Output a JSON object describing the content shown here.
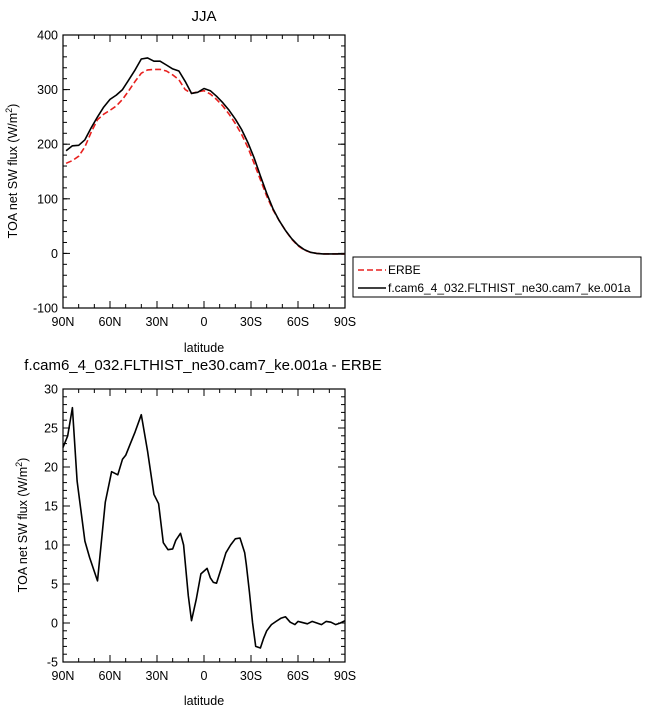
{
  "chart_data": [
    {
      "type": "line",
      "title": "JJA",
      "xlabel": "latitude",
      "ylabel": "TOA net SW flux (W/m2)",
      "ylabel_main": "TOA net SW flux (W/m",
      "ylabel_sup": "2",
      "ylabel_close": ")",
      "xlim": [
        -90,
        90
      ],
      "ylim": [
        -100,
        400
      ],
      "x_reversed": true,
      "xticks": [
        {
          "v": -90,
          "label": "90N"
        },
        {
          "v": -60,
          "label": "60N"
        },
        {
          "v": -30,
          "label": "30N"
        },
        {
          "v": 0,
          "label": "0"
        },
        {
          "v": 30,
          "label": "30S"
        },
        {
          "v": 60,
          "label": "60S"
        },
        {
          "v": 90,
          "label": "90S"
        }
      ],
      "yticks": [
        {
          "v": -100,
          "label": "-100"
        },
        {
          "v": 0,
          "label": "0"
        },
        {
          "v": 100,
          "label": "100"
        },
        {
          "v": 200,
          "label": "200"
        },
        {
          "v": 300,
          "label": "300"
        },
        {
          "v": 400,
          "label": "400"
        }
      ],
      "legend": "right",
      "series": [
        {
          "name": "ERBE",
          "color": "#e8201e",
          "dash": true,
          "x": [
            -88,
            -84,
            -80,
            -76,
            -72,
            -68,
            -64,
            -60,
            -56,
            -52,
            -48,
            -44,
            -40,
            -36,
            -32,
            -28,
            -24,
            -20,
            -16,
            -12,
            -8,
            -4,
            0,
            4,
            8,
            12,
            16,
            20,
            24,
            28,
            32,
            36,
            40,
            44,
            48,
            52,
            56,
            60,
            64,
            68,
            72,
            76,
            80,
            84,
            88,
            90
          ],
          "y": [
            165,
            170,
            178,
            195,
            222,
            245,
            255,
            262,
            270,
            282,
            298,
            315,
            330,
            336,
            337,
            337,
            334,
            327,
            318,
            300,
            293,
            296,
            298,
            292,
            282,
            270,
            255,
            238,
            218,
            194,
            165,
            135,
            105,
            80,
            60,
            42,
            26,
            14,
            6,
            2,
            0,
            -1,
            -1,
            -1,
            -1,
            -1
          ]
        },
        {
          "name": "f.cam6_4_032.FLTHIST_ne30.cam7_ke.001a",
          "color": "#000000",
          "dash": false,
          "x": [
            -88,
            -84,
            -80,
            -76,
            -72,
            -68,
            -64,
            -60,
            -56,
            -52,
            -48,
            -44,
            -40,
            -36,
            -32,
            -28,
            -24,
            -20,
            -16,
            -12,
            -8,
            -4,
            0,
            4,
            8,
            12,
            16,
            20,
            24,
            28,
            32,
            36,
            40,
            44,
            48,
            52,
            56,
            60,
            64,
            68,
            72,
            76,
            80,
            84,
            88,
            90
          ],
          "y": [
            188,
            197,
            198,
            208,
            230,
            250,
            268,
            282,
            290,
            300,
            318,
            336,
            356,
            358,
            352,
            352,
            345,
            338,
            334,
            315,
            293,
            295,
            302,
            298,
            288,
            276,
            262,
            246,
            227,
            203,
            175,
            142,
            110,
            82,
            60,
            42,
            27,
            15,
            7,
            2,
            0,
            -1,
            -1,
            -1,
            -1,
            -1
          ]
        }
      ]
    },
    {
      "type": "line",
      "title": "f.cam6_4_032.FLTHIST_ne30.cam7_ke.001a - ERBE",
      "xlabel": "latitude",
      "ylabel": "TOA net SW flux (W/m2)",
      "ylabel_main": "TOA net SW flux (W/m",
      "ylabel_sup": "2",
      "ylabel_close": ")",
      "xlim": [
        -90,
        90
      ],
      "ylim": [
        -5,
        30
      ],
      "x_reversed": true,
      "xticks": [
        {
          "v": -90,
          "label": "90N"
        },
        {
          "v": -60,
          "label": "60N"
        },
        {
          "v": -30,
          "label": "30N"
        },
        {
          "v": 0,
          "label": "0"
        },
        {
          "v": 30,
          "label": "30S"
        },
        {
          "v": 60,
          "label": "60S"
        },
        {
          "v": 90,
          "label": "90S"
        }
      ],
      "yticks": [
        {
          "v": -5,
          "label": "-5"
        },
        {
          "v": 0,
          "label": "0"
        },
        {
          "v": 5,
          "label": "5"
        },
        {
          "v": 10,
          "label": "10"
        },
        {
          "v": 15,
          "label": "15"
        },
        {
          "v": 20,
          "label": "20"
        },
        {
          "v": 25,
          "label": "25"
        },
        {
          "v": 30,
          "label": "30"
        }
      ],
      "series": [
        {
          "color": "#000000",
          "dash": false,
          "x": [
            -90,
            -87,
            -84,
            -81,
            -76,
            -73,
            -68,
            -63,
            -59,
            -55,
            -52,
            -50,
            -47,
            -44,
            -40,
            -36,
            -32,
            -29,
            -26,
            -23,
            -20,
            -18,
            -15,
            -13,
            -10,
            -8,
            -5,
            -2,
            2,
            4,
            6,
            8,
            11,
            14,
            17,
            20,
            23,
            26,
            27,
            29,
            31,
            33,
            36,
            38,
            40,
            43,
            46,
            49,
            52,
            55,
            58,
            60,
            62,
            66,
            69,
            72,
            75,
            78,
            81,
            84,
            87,
            90
          ],
          "y": [
            22.5,
            24,
            27.6,
            18.2,
            10.5,
            8.4,
            5.4,
            15.5,
            19.4,
            19.0,
            21.0,
            21.5,
            23.0,
            24.5,
            26.7,
            22.0,
            16.5,
            15.3,
            10.3,
            9.4,
            9.5,
            10.6,
            11.5,
            10.0,
            3.5,
            0.3,
            3.0,
            6.3,
            7.0,
            5.8,
            5.2,
            5.1,
            7.0,
            9.0,
            10.0,
            10.8,
            10.9,
            9.0,
            7.5,
            4.0,
            0.0,
            -3.0,
            -3.2,
            -2.0,
            -1.0,
            -0.2,
            0.2,
            0.6,
            0.8,
            0.1,
            -0.2,
            0.2,
            0.1,
            -0.1,
            0.2,
            0.0,
            -0.2,
            0.2,
            0.1,
            -0.2,
            0.0,
            0.3
          ]
        }
      ]
    }
  ]
}
